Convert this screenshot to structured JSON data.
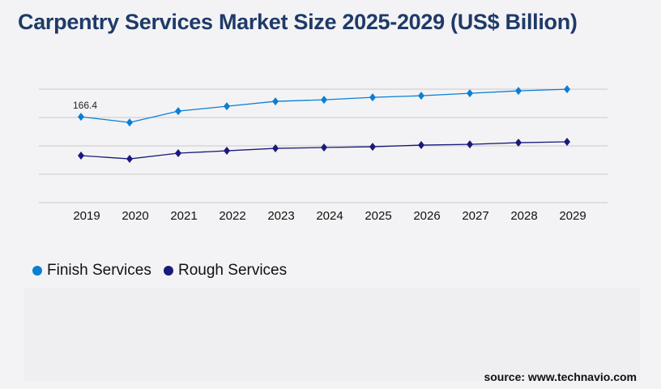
{
  "title": "Carpentry Services Market Size 2025-2029 (US$ Billion)",
  "source": "source: www.technavio.com",
  "chart_data": {
    "type": "line",
    "title": "Carpentry Services Market Size 2025-2029 (US$ Billion)",
    "xlabel": "",
    "ylabel": "",
    "categories": [
      "2019",
      "2020",
      "2021",
      "2022",
      "2023",
      "2024",
      "2025",
      "2026",
      "2027",
      "2028",
      "2029"
    ],
    "ylim": [
      0,
      220
    ],
    "grid": true,
    "legend_position": "bottom-left",
    "series": [
      {
        "name": "Finish Services",
        "color": "#0a7fd4",
        "values": [
          166.4,
          155.4,
          177.4,
          186.8,
          196.3,
          199.4,
          204.1,
          207.2,
          211.9,
          216.7,
          219.8
        ]
      },
      {
        "name": "Rough Services",
        "color": "#1a1a7a",
        "values": [
          91.1,
          84.8,
          95.8,
          100.5,
          105.2,
          106.8,
          108.3,
          111.5,
          113.0,
          116.2,
          117.8
        ]
      }
    ],
    "annotations": [
      {
        "series": "Finish Services",
        "category": "2019",
        "text": "166.4"
      }
    ]
  }
}
